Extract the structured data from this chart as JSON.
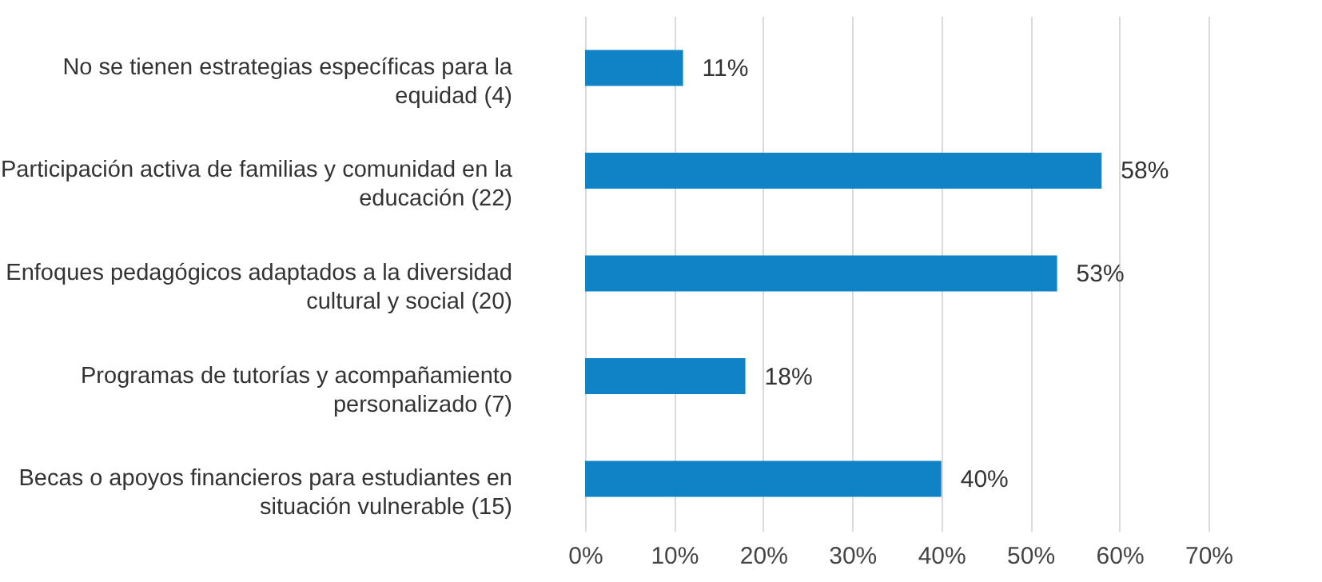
{
  "chart_data": {
    "type": "bar",
    "orientation": "horizontal",
    "categories": [
      "No se tienen estrategias específicas para la equidad (4)",
      "Participación activa de familias y comunidad en la educación (22)",
      "Enfoques pedagógicos adaptados a la diversidad cultural y social (20)",
      "Programas de tutorías y acompañamiento personalizado (7)",
      "Becas o apoyos financieros para estudiantes en situación vulnerable (15)"
    ],
    "values": [
      11,
      58,
      53,
      18,
      40
    ],
    "value_labels": [
      "11%",
      "58%",
      "53%",
      "18%",
      "40%"
    ],
    "color": "#0f83c6",
    "xlim": [
      0,
      70
    ],
    "xticks": [
      {
        "value": 0,
        "label": "0%"
      },
      {
        "value": 10,
        "label": "10%"
      },
      {
        "value": 20,
        "label": "20%"
      },
      {
        "value": 30,
        "label": "30%"
      },
      {
        "value": 40,
        "label": "40%"
      },
      {
        "value": 50,
        "label": "50%"
      },
      {
        "value": 60,
        "label": "60%"
      },
      {
        "value": 70,
        "label": "70%"
      }
    ],
    "grid": "x"
  }
}
